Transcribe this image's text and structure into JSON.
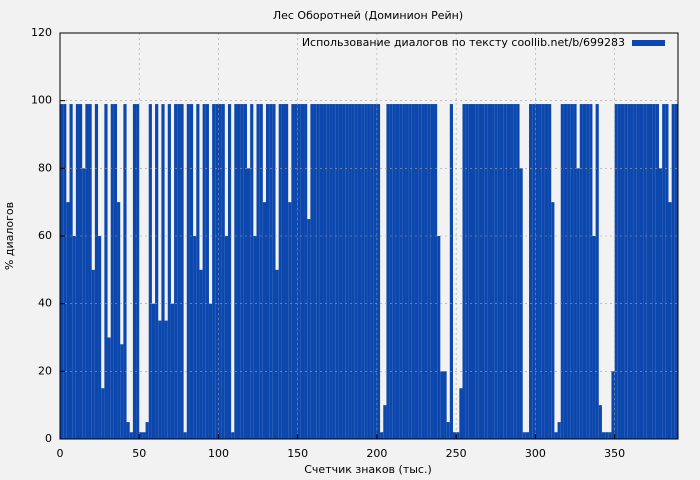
{
  "chart_data": {
    "type": "bar",
    "title": "Лес Оборотней (Доминион Рейн)",
    "xlabel": "Счетчик знаков (тыс.)",
    "ylabel": "% диалогов",
    "legend": "top right",
    "grid": true,
    "xlim": [
      0,
      390
    ],
    "ylim": [
      0,
      120
    ],
    "xticks": [
      0,
      50,
      100,
      150,
      200,
      250,
      300,
      350
    ],
    "yticks": [
      0,
      20,
      40,
      60,
      80,
      100,
      120
    ],
    "x": [
      0,
      2,
      4,
      6,
      8,
      10,
      12,
      14,
      16,
      18,
      20,
      22,
      24,
      26,
      28,
      30,
      32,
      34,
      36,
      38,
      40,
      42,
      44,
      46,
      48,
      50,
      52,
      54,
      56,
      58,
      60,
      62,
      64,
      66,
      68,
      70,
      72,
      74,
      76,
      78,
      80,
      82,
      84,
      86,
      88,
      90,
      92,
      94,
      96,
      98,
      100,
      102,
      104,
      106,
      108,
      110,
      112,
      114,
      116,
      118,
      120,
      122,
      124,
      126,
      128,
      130,
      132,
      134,
      136,
      138,
      140,
      142,
      144,
      146,
      148,
      150,
      152,
      154,
      156,
      158,
      160,
      162,
      164,
      166,
      168,
      170,
      172,
      174,
      176,
      178,
      180,
      182,
      184,
      186,
      188,
      190,
      192,
      194,
      196,
      198,
      200,
      202,
      204,
      206,
      208,
      210,
      212,
      214,
      216,
      218,
      220,
      222,
      224,
      226,
      228,
      230,
      232,
      234,
      236,
      238,
      240,
      242,
      244,
      246,
      248,
      250,
      252,
      254,
      256,
      258,
      260,
      262,
      264,
      266,
      268,
      270,
      272,
      274,
      276,
      278,
      280,
      282,
      284,
      286,
      288,
      290,
      292,
      294,
      296,
      298,
      300,
      302,
      304,
      306,
      308,
      310,
      312,
      314,
      316,
      318,
      320,
      322,
      324,
      326,
      328,
      330,
      332,
      334,
      336,
      338,
      340,
      342,
      344,
      346,
      348,
      350,
      352,
      354,
      356,
      358,
      360,
      362,
      364,
      366,
      368,
      370,
      372,
      374,
      376,
      378,
      380,
      382,
      384,
      386,
      388
    ],
    "series": [
      {
        "name": "Использование диалогов по тексту coollib.net/b/699283",
        "color": "#0b47ad",
        "values": [
          99,
          99,
          70,
          99,
          60,
          99,
          99,
          80,
          99,
          99,
          50,
          99,
          60,
          15,
          99,
          30,
          99,
          99,
          70,
          28,
          99,
          5,
          2,
          99,
          99,
          2,
          2,
          5,
          99,
          40,
          99,
          35,
          99,
          35,
          99,
          40,
          99,
          99,
          99,
          2,
          99,
          99,
          60,
          99,
          50,
          99,
          99,
          40,
          99,
          99,
          99,
          99,
          60,
          99,
          2,
          99,
          99,
          99,
          99,
          80,
          99,
          60,
          99,
          99,
          70,
          99,
          99,
          99,
          50,
          99,
          99,
          99,
          70,
          99,
          99,
          99,
          99,
          99,
          65,
          99,
          99,
          99,
          99,
          99,
          99,
          99,
          99,
          99,
          99,
          99,
          99,
          99,
          99,
          99,
          99,
          99,
          99,
          99,
          99,
          99,
          99,
          2,
          10,
          99,
          99,
          99,
          99,
          99,
          99,
          99,
          99,
          99,
          99,
          99,
          99,
          99,
          99,
          99,
          99,
          60,
          20,
          20,
          5,
          99,
          2,
          2,
          15,
          99,
          99,
          99,
          99,
          99,
          99,
          99,
          99,
          99,
          99,
          99,
          99,
          99,
          99,
          99,
          99,
          99,
          99,
          80,
          2,
          2,
          99,
          99,
          99,
          99,
          99,
          99,
          99,
          70,
          2,
          5,
          99,
          99,
          99,
          99,
          99,
          80,
          99,
          99,
          99,
          99,
          60,
          99,
          10,
          2,
          2,
          2,
          20,
          99,
          99,
          99,
          99,
          99,
          99,
          99,
          99,
          99,
          99,
          99,
          99,
          99,
          99,
          80,
          99,
          99,
          70,
          99,
          99
        ]
      }
    ]
  }
}
